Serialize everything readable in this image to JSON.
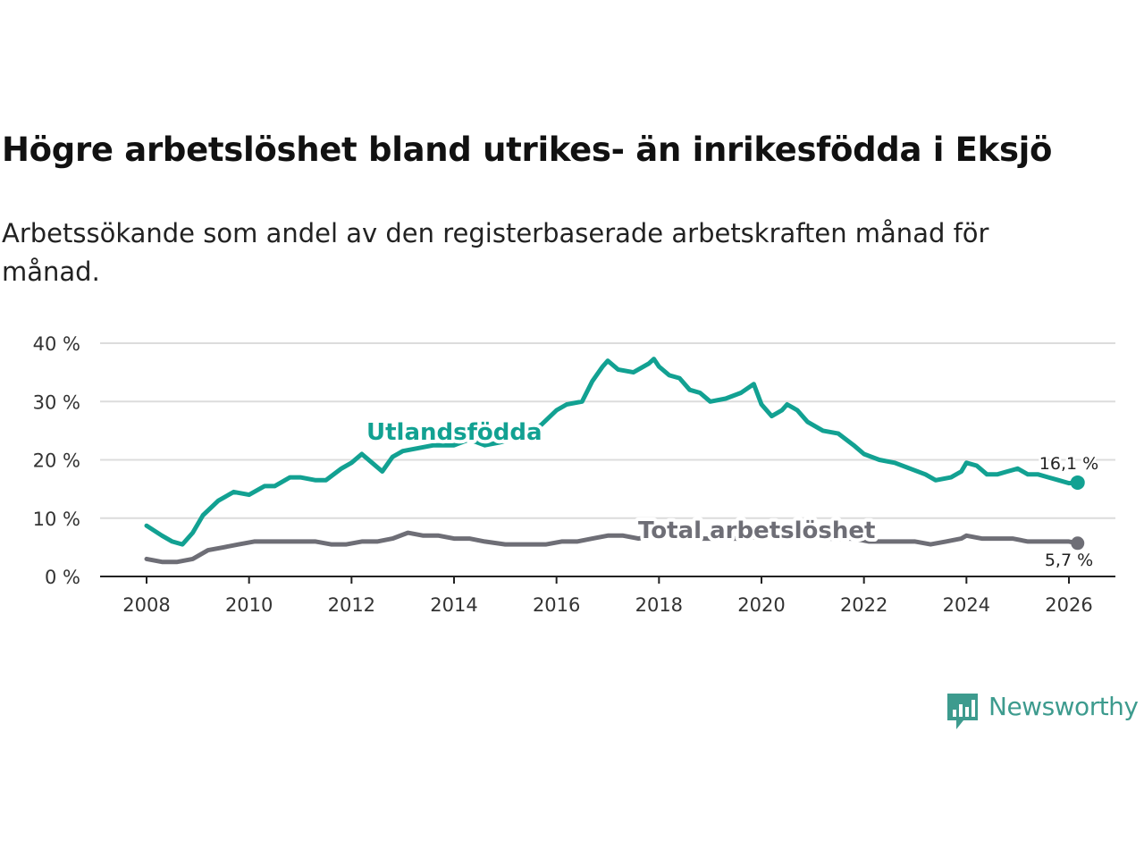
{
  "header": {
    "title": "Högre arbetslöshet bland utrikes- än inrikesfödda i Eksjö",
    "subtitle": "Arbetssökande som andel av den registerbaserade arbetskraften månad för månad."
  },
  "brand": {
    "name": "Newsworthy",
    "color": "#3d9b8e"
  },
  "chart_data": {
    "type": "line",
    "title": "Högre arbetslöshet bland utrikes- än inrikesfödda i Eksjö",
    "subtitle": "Arbetssökande som andel av den registerbaserade arbetskraften månad för månad.",
    "xlabel": "",
    "ylabel": "",
    "xlim": [
      2008,
      2026.2
    ],
    "ylim": [
      0,
      40
    ],
    "grid": true,
    "x_ticks": [
      2008,
      2010,
      2012,
      2014,
      2016,
      2018,
      2020,
      2022,
      2024,
      2026
    ],
    "x_tick_labels": [
      "2008",
      "2010",
      "2012",
      "2014",
      "2016",
      "2018",
      "2020",
      "2022",
      "2024",
      "2026"
    ],
    "y_ticks": [
      0,
      10,
      20,
      30,
      40
    ],
    "y_tick_labels": [
      "0 %",
      "10 %",
      "20 %",
      "30 %",
      "40 %"
    ],
    "series": [
      {
        "name": "Utlandsfödda",
        "color": "#12a192",
        "end_label": "16,1 %",
        "points": [
          [
            2008.0,
            8.7
          ],
          [
            2008.3,
            7.0
          ],
          [
            2008.5,
            6.0
          ],
          [
            2008.7,
            5.5
          ],
          [
            2008.9,
            7.5
          ],
          [
            2009.1,
            10.5
          ],
          [
            2009.4,
            13.0
          ],
          [
            2009.7,
            14.5
          ],
          [
            2010.0,
            14.0
          ],
          [
            2010.3,
            15.5
          ],
          [
            2010.5,
            15.5
          ],
          [
            2010.8,
            17.0
          ],
          [
            2011.0,
            17.0
          ],
          [
            2011.3,
            16.5
          ],
          [
            2011.5,
            16.5
          ],
          [
            2011.8,
            18.5
          ],
          [
            2012.0,
            19.5
          ],
          [
            2012.2,
            21.0
          ],
          [
            2012.4,
            19.5
          ],
          [
            2012.6,
            18.0
          ],
          [
            2012.8,
            20.5
          ],
          [
            2013.0,
            21.5
          ],
          [
            2013.3,
            22.0
          ],
          [
            2013.6,
            22.5
          ],
          [
            2014.0,
            22.5
          ],
          [
            2014.3,
            23.5
          ],
          [
            2014.6,
            22.5
          ],
          [
            2014.9,
            23.0
          ],
          [
            2015.3,
            24.0
          ],
          [
            2015.7,
            26.0
          ],
          [
            2016.0,
            28.5
          ],
          [
            2016.2,
            29.5
          ],
          [
            2016.5,
            30.0
          ],
          [
            2016.7,
            33.5
          ],
          [
            2016.9,
            36.0
          ],
          [
            2017.0,
            37.0
          ],
          [
            2017.2,
            35.5
          ],
          [
            2017.5,
            35.0
          ],
          [
            2017.8,
            36.5
          ],
          [
            2017.9,
            37.3
          ],
          [
            2018.0,
            36.0
          ],
          [
            2018.2,
            34.5
          ],
          [
            2018.4,
            34.0
          ],
          [
            2018.6,
            32.0
          ],
          [
            2018.8,
            31.5
          ],
          [
            2019.0,
            30.0
          ],
          [
            2019.3,
            30.5
          ],
          [
            2019.6,
            31.5
          ],
          [
            2019.85,
            33.0
          ],
          [
            2020.0,
            29.5
          ],
          [
            2020.2,
            27.5
          ],
          [
            2020.4,
            28.5
          ],
          [
            2020.5,
            29.5
          ],
          [
            2020.7,
            28.5
          ],
          [
            2020.9,
            26.5
          ],
          [
            2021.2,
            25.0
          ],
          [
            2021.5,
            24.5
          ],
          [
            2021.8,
            22.5
          ],
          [
            2022.0,
            21.0
          ],
          [
            2022.3,
            20.0
          ],
          [
            2022.6,
            19.5
          ],
          [
            2022.9,
            18.5
          ],
          [
            2023.2,
            17.5
          ],
          [
            2023.4,
            16.5
          ],
          [
            2023.7,
            17.0
          ],
          [
            2023.9,
            18.0
          ],
          [
            2024.0,
            19.5
          ],
          [
            2024.2,
            19.0
          ],
          [
            2024.4,
            17.5
          ],
          [
            2024.6,
            17.5
          ],
          [
            2024.8,
            18.0
          ],
          [
            2025.0,
            18.5
          ],
          [
            2025.2,
            17.5
          ],
          [
            2025.4,
            17.5
          ],
          [
            2025.6,
            17.0
          ],
          [
            2025.8,
            16.5
          ],
          [
            2026.0,
            16.0
          ],
          [
            2026.17,
            16.1
          ]
        ]
      },
      {
        "name": "Total arbetslöshet",
        "color": "#6e6e76",
        "end_label": "5,7 %",
        "points": [
          [
            2008.0,
            3.0
          ],
          [
            2008.3,
            2.5
          ],
          [
            2008.6,
            2.5
          ],
          [
            2008.9,
            3.0
          ],
          [
            2009.2,
            4.5
          ],
          [
            2009.5,
            5.0
          ],
          [
            2009.8,
            5.5
          ],
          [
            2010.1,
            6.0
          ],
          [
            2010.4,
            6.0
          ],
          [
            2010.7,
            6.0
          ],
          [
            2011.0,
            6.0
          ],
          [
            2011.3,
            6.0
          ],
          [
            2011.6,
            5.5
          ],
          [
            2011.9,
            5.5
          ],
          [
            2012.2,
            6.0
          ],
          [
            2012.5,
            6.0
          ],
          [
            2012.8,
            6.5
          ],
          [
            2013.1,
            7.5
          ],
          [
            2013.4,
            7.0
          ],
          [
            2013.7,
            7.0
          ],
          [
            2014.0,
            6.5
          ],
          [
            2014.3,
            6.5
          ],
          [
            2014.6,
            6.0
          ],
          [
            2015.0,
            5.5
          ],
          [
            2015.4,
            5.5
          ],
          [
            2015.8,
            5.5
          ],
          [
            2016.1,
            6.0
          ],
          [
            2016.4,
            6.0
          ],
          [
            2016.7,
            6.5
          ],
          [
            2017.0,
            7.0
          ],
          [
            2017.3,
            7.0
          ],
          [
            2017.6,
            6.5
          ],
          [
            2017.9,
            7.0
          ],
          [
            2018.2,
            7.0
          ],
          [
            2018.5,
            6.5
          ],
          [
            2018.8,
            6.5
          ],
          [
            2019.1,
            6.5
          ],
          [
            2019.4,
            6.5
          ],
          [
            2019.7,
            6.5
          ],
          [
            2020.0,
            7.0
          ],
          [
            2020.3,
            7.0
          ],
          [
            2020.6,
            7.0
          ],
          [
            2020.9,
            7.0
          ],
          [
            2021.2,
            6.5
          ],
          [
            2021.5,
            6.5
          ],
          [
            2021.8,
            6.5
          ],
          [
            2022.1,
            6.0
          ],
          [
            2022.4,
            6.0
          ],
          [
            2022.7,
            6.0
          ],
          [
            2023.0,
            6.0
          ],
          [
            2023.3,
            5.5
          ],
          [
            2023.6,
            6.0
          ],
          [
            2023.9,
            6.5
          ],
          [
            2024.0,
            7.0
          ],
          [
            2024.3,
            6.5
          ],
          [
            2024.6,
            6.5
          ],
          [
            2024.9,
            6.5
          ],
          [
            2025.2,
            6.0
          ],
          [
            2025.5,
            6.0
          ],
          [
            2025.8,
            6.0
          ],
          [
            2026.0,
            6.0
          ],
          [
            2026.17,
            5.7
          ]
        ]
      }
    ]
  }
}
